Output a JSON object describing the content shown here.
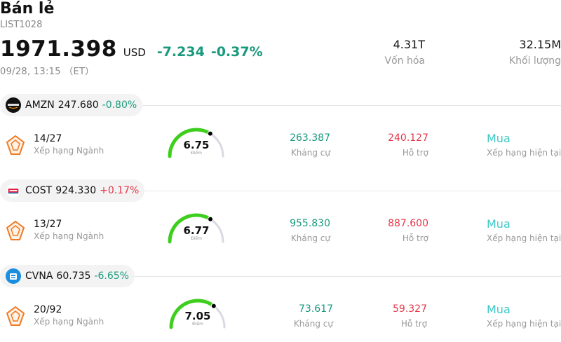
{
  "header": {
    "title": "Bán lẻ",
    "ticker": "LIST1028",
    "price": "1971.398",
    "currency": "USD",
    "change": "-7.234",
    "change_percent": "-0.37%",
    "timestamp": "09/28, 13:15 （ET）",
    "market_cap_value": "4.31T",
    "market_cap_label": "Vốn hóa",
    "volume_value": "32.15M",
    "volume_label": "Khối lượng"
  },
  "labels": {
    "rank": "Xếp hạng Ngành",
    "score": "Điểm",
    "resistance": "Kháng cự",
    "support": "Hỗ trợ",
    "rating": "Xếp hạng hiện tại"
  },
  "colors": {
    "green": "#1a9a7c",
    "red": "#e5384a",
    "gauge_fill": "#3ecf1e",
    "gauge_track": "#d9d9e2",
    "rating": "#3fc8c8"
  },
  "stocks": [
    {
      "symbol": "AMZN",
      "price": "247.680",
      "change_percent": "-0.80%",
      "logo_icon": "amazon-logo-icon",
      "rank": "14/27",
      "score": "6.75",
      "score_value": 6.75,
      "resistance": "263.387",
      "support": "240.127",
      "rating": "Mua"
    },
    {
      "symbol": "COST",
      "price": "924.330",
      "change_percent": "+0.17%",
      "logo_icon": "costco-logo-icon",
      "rank": "13/27",
      "score": "6.77",
      "score_value": 6.77,
      "resistance": "955.830",
      "support": "887.600",
      "rating": "Mua"
    },
    {
      "symbol": "CVNA",
      "price": "60.735",
      "change_percent": "-6.65%",
      "logo_icon": "carvana-logo-icon",
      "rank": "20/92",
      "score": "7.05",
      "score_value": 7.05,
      "resistance": "73.617",
      "support": "59.327",
      "rating": "Mua"
    }
  ]
}
